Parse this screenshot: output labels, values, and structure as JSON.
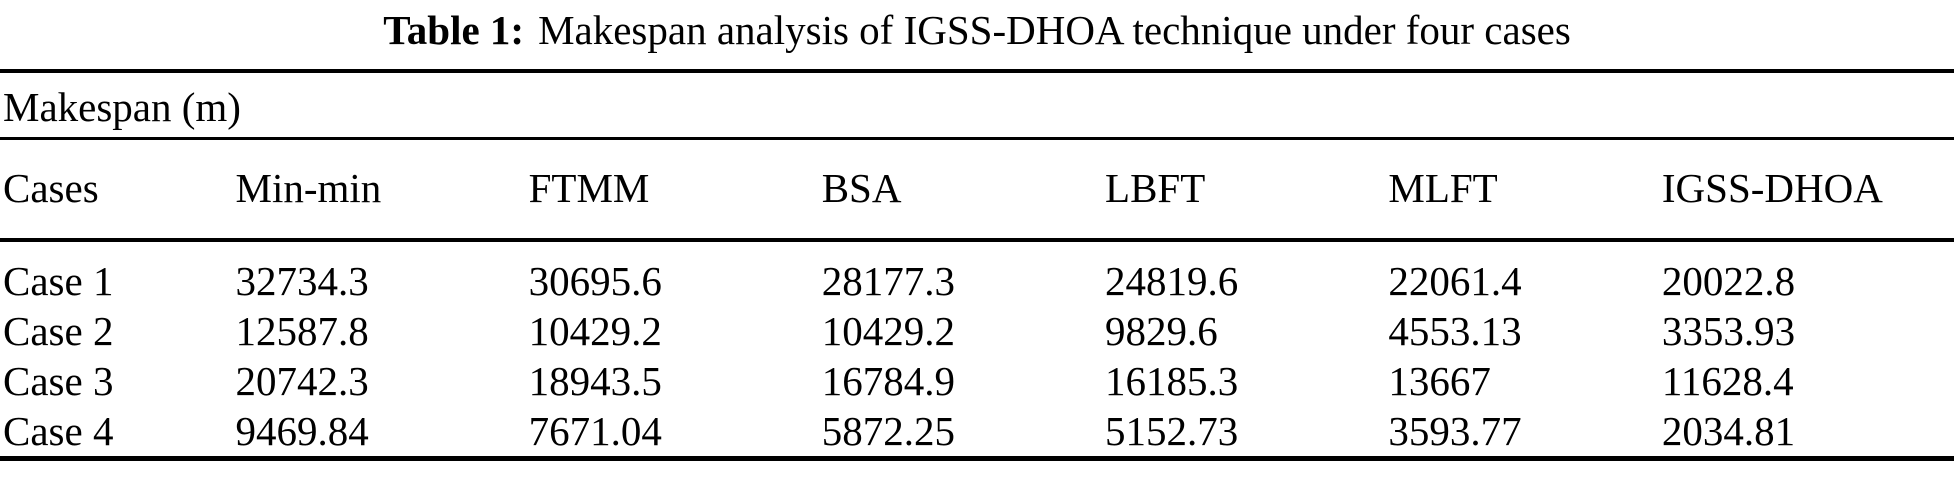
{
  "caption": {
    "label": "Table 1:",
    "text": "Makespan analysis of IGSS-DHOA technique under four cases"
  },
  "table": {
    "group_header": "Makespan (m)",
    "columns": [
      "Cases",
      "Min-min",
      "FTMM",
      "BSA",
      "LBFT",
      "MLFT",
      "IGSS-DHOA"
    ],
    "rows": [
      {
        "case": "Case 1",
        "values": [
          "32734.3",
          "30695.6",
          "28177.3",
          "24819.6",
          "22061.4",
          "20022.8"
        ]
      },
      {
        "case": "Case 2",
        "values": [
          "12587.8",
          "10429.2",
          "10429.2",
          "9829.6",
          "4553.13",
          "3353.93"
        ]
      },
      {
        "case": "Case 3",
        "values": [
          "20742.3",
          "18943.5",
          "16784.9",
          "16185.3",
          "13667",
          "11628.4"
        ]
      },
      {
        "case": "Case 4",
        "values": [
          "9469.84",
          "7671.04",
          "5872.25",
          "5152.73",
          "3593.77",
          "2034.81"
        ]
      }
    ]
  },
  "colors": {
    "text": "#000000",
    "background": "#ffffff",
    "rule": "#000000"
  },
  "chart_data": {
    "type": "table",
    "title": "Table 1: Makespan analysis of IGSS-DHOA technique under four cases",
    "group_header": "Makespan (m)",
    "categories": [
      "Case 1",
      "Case 2",
      "Case 3",
      "Case 4"
    ],
    "series": [
      {
        "name": "Min-min",
        "values": [
          32734.3,
          12587.8,
          20742.3,
          9469.84
        ]
      },
      {
        "name": "FTMM",
        "values": [
          30695.6,
          10429.2,
          18943.5,
          7671.04
        ]
      },
      {
        "name": "BSA",
        "values": [
          28177.3,
          10429.2,
          16784.9,
          5872.25
        ]
      },
      {
        "name": "LBFT",
        "values": [
          24819.6,
          9829.6,
          16185.3,
          5152.73
        ]
      },
      {
        "name": "MLFT",
        "values": [
          22061.4,
          4553.13,
          13667,
          3593.77
        ]
      },
      {
        "name": "IGSS-DHOA",
        "values": [
          20022.8,
          3353.93,
          11628.4,
          2034.81
        ]
      }
    ]
  }
}
